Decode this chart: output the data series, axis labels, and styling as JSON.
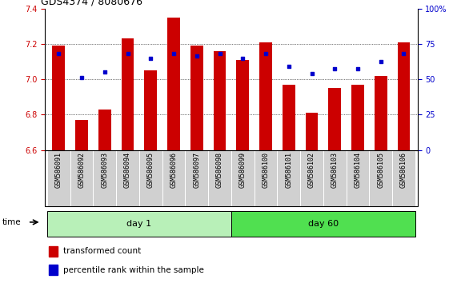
{
  "title": "GDS4374 / 8080676",
  "samples": [
    "GSM586091",
    "GSM586092",
    "GSM586093",
    "GSM586094",
    "GSM586095",
    "GSM586096",
    "GSM586097",
    "GSM586098",
    "GSM586099",
    "GSM586100",
    "GSM586101",
    "GSM586102",
    "GSM586103",
    "GSM586104",
    "GSM586105",
    "GSM586106"
  ],
  "bar_values": [
    7.19,
    6.77,
    6.83,
    7.23,
    7.05,
    7.35,
    7.19,
    7.16,
    7.11,
    7.21,
    6.97,
    6.81,
    6.95,
    6.97,
    7.02,
    7.21
  ],
  "dot_values": [
    7.145,
    7.01,
    7.04,
    7.145,
    7.12,
    7.145,
    7.13,
    7.145,
    7.12,
    7.145,
    7.075,
    7.03,
    7.06,
    7.06,
    7.1,
    7.145
  ],
  "bar_color": "#cc0000",
  "dot_color": "#0000cc",
  "ymin": 6.6,
  "ymax": 7.4,
  "yticks": [
    6.6,
    6.8,
    7.0,
    7.2,
    7.4
  ],
  "right_yticks": [
    0,
    25,
    50,
    75,
    100
  ],
  "right_ylabels": [
    "0",
    "25",
    "50",
    "75",
    "100%"
  ],
  "day1_samples": 8,
  "day60_samples": 8,
  "day1_label": "day 1",
  "day60_label": "day 60",
  "time_label": "time",
  "legend1": "transformed count",
  "legend2": "percentile rank within the sample",
  "day1_color": "#b8f0b8",
  "day60_color": "#50e050",
  "title_fontsize": 9,
  "tick_fontsize": 7,
  "label_fontsize": 6,
  "day_fontsize": 8,
  "legend_fontsize": 7.5,
  "grid_yticks": [
    6.8,
    7.0,
    7.2
  ]
}
